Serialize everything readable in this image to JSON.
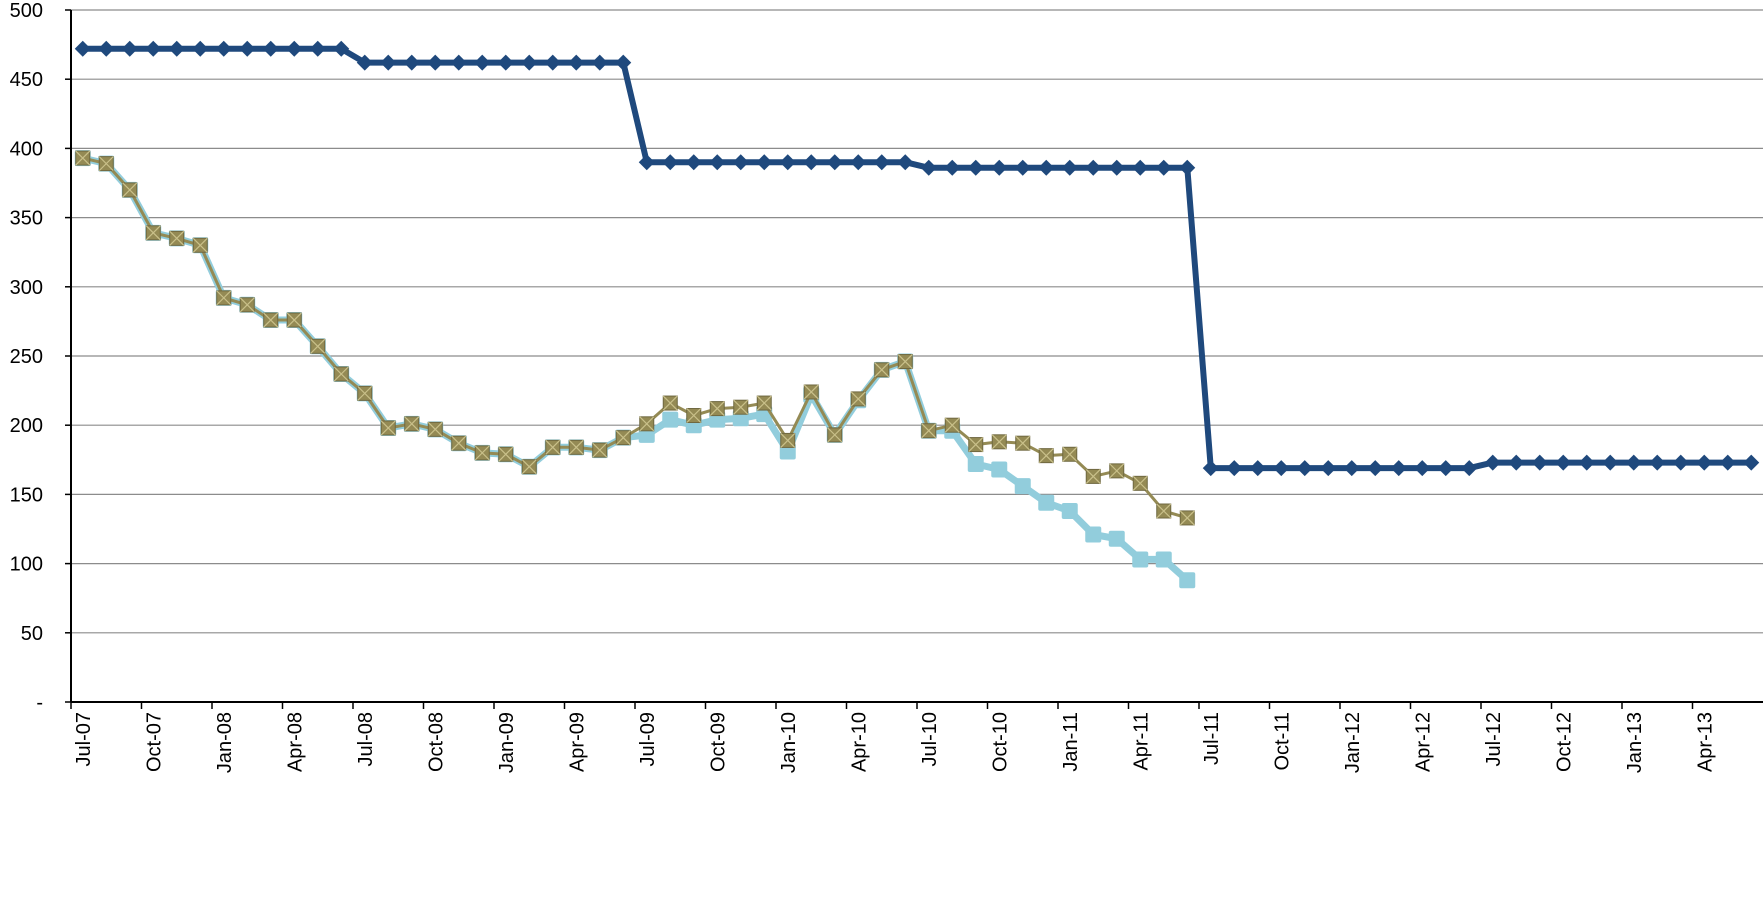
{
  "chart_data": {
    "type": "line",
    "title": "",
    "xlabel": "",
    "ylabel": "",
    "ylim": [
      0,
      500
    ],
    "y_ticks": [
      0,
      50,
      100,
      150,
      200,
      250,
      300,
      350,
      400,
      450,
      500
    ],
    "y_tick_labels": [
      "-",
      "50",
      "100",
      "150",
      "200",
      "250",
      "300",
      "350",
      "400",
      "450",
      "500"
    ],
    "x_start_month": "Jul-07",
    "x_end_month": "Jun-13",
    "x_tick_labels": [
      "Jul-07",
      "Oct-07",
      "Jan-08",
      "Apr-08",
      "Jul-08",
      "Oct-08",
      "Jan-09",
      "Apr-09",
      "Jul-09",
      "Oct-09",
      "Jan-10",
      "Apr-10",
      "Jul-10",
      "Oct-10",
      "Jan-11",
      "Apr-11",
      "Jul-11",
      "Oct-11",
      "Jan-12",
      "Apr-12",
      "Jul-12",
      "Oct-12",
      "Jan-13",
      "Apr-13"
    ],
    "grid": true,
    "legend": "none",
    "series": [
      {
        "color": "#1f497d",
        "marker": "diamond",
        "x_start": "Jul-07",
        "values": [
          472,
          472,
          472,
          472,
          472,
          472,
          472,
          472,
          472,
          472,
          472,
          472,
          462,
          462,
          462,
          462,
          462,
          462,
          462,
          462,
          462,
          462,
          462,
          462,
          390,
          390,
          390,
          390,
          390,
          390,
          390,
          390,
          390,
          390,
          390,
          390,
          386,
          386,
          386,
          386,
          386,
          386,
          386,
          386,
          386,
          386,
          386,
          386,
          169,
          169,
          169,
          169,
          169,
          169,
          169,
          169,
          169,
          169,
          169,
          169,
          173,
          173,
          173,
          173,
          173,
          173,
          173,
          173,
          173,
          173,
          173,
          173
        ]
      },
      {
        "color": "#92cddc",
        "marker": "square",
        "x_start": "Jul-07",
        "values": [
          393,
          389,
          370,
          339,
          335,
          330,
          292,
          287,
          276,
          276,
          257,
          237,
          223,
          198,
          201,
          197,
          187,
          180,
          179,
          170,
          184,
          184,
          182,
          191,
          193,
          204,
          200,
          204,
          205,
          208,
          181,
          222,
          193,
          218,
          240,
          246,
          196,
          196,
          172,
          168,
          156,
          144,
          138,
          121,
          118,
          103,
          103,
          88
        ]
      },
      {
        "color": "#948a54",
        "marker": "x",
        "x_start": "Jul-07",
        "values": [
          393,
          389,
          370,
          339,
          335,
          330,
          292,
          287,
          276,
          276,
          257,
          237,
          223,
          198,
          201,
          197,
          187,
          180,
          179,
          170,
          184,
          184,
          182,
          191,
          201,
          216,
          207,
          212,
          213,
          216,
          189,
          224,
          193,
          219,
          240,
          246,
          196,
          200,
          186,
          188,
          187,
          178,
          179,
          163,
          167,
          158,
          138,
          133
        ]
      }
    ]
  }
}
